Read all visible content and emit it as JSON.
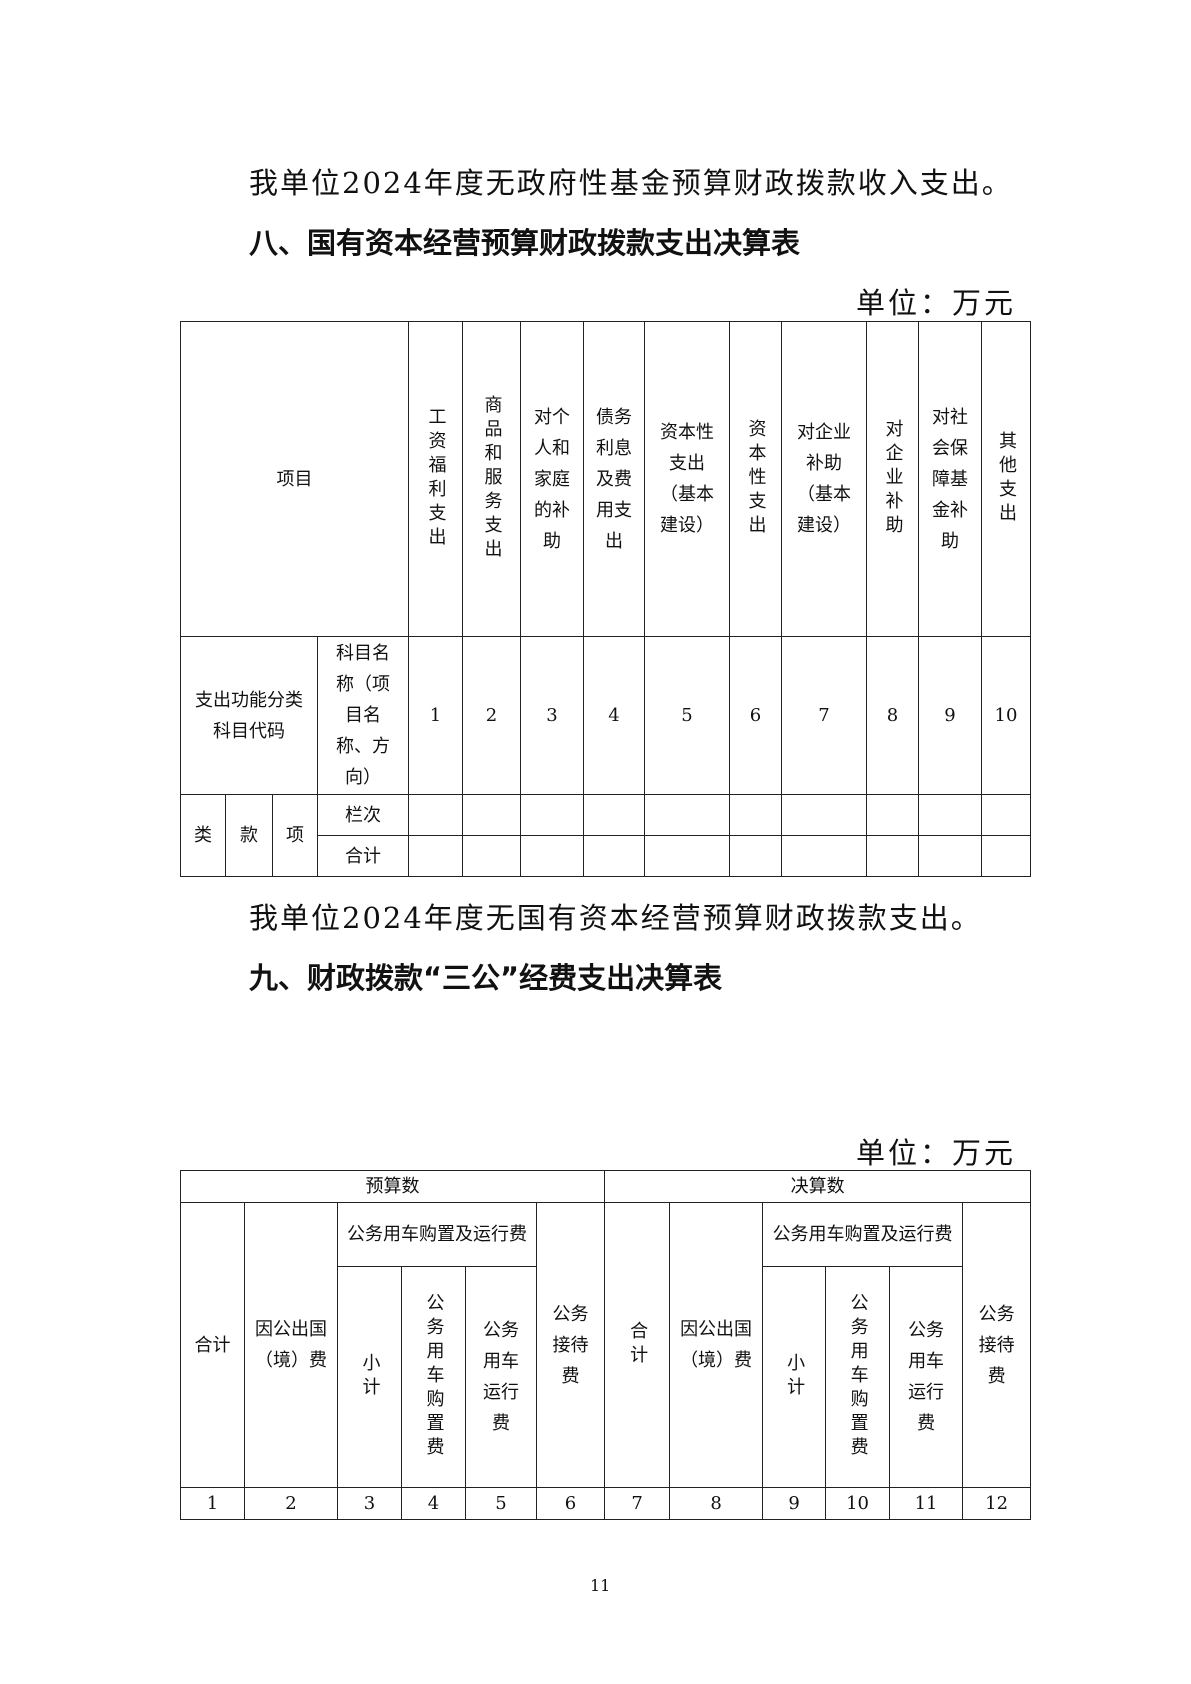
{
  "para1": "我单位2024年度无政府性基金预算财政拨款收入支出。",
  "heading8": "八、国有资本经营预算财政拨款支出决算表",
  "unit": "单位：万元",
  "table8": {
    "project": "项目",
    "columns": [
      "工资福利支出",
      "商品和服务支出",
      "对个人和家庭的补助",
      "债务利息及费用支出",
      "资本性支出（基本建设）",
      "资本性支出",
      "对企业补助（基本建设）",
      "对企业补助",
      "对社会保障基金补助",
      "其他支出"
    ],
    "func_code": "支出功能分类科目代码",
    "subject_name": "科目名称（项目名称、方向）",
    "col_numbers": [
      "1",
      "2",
      "3",
      "4",
      "5",
      "6",
      "7",
      "8",
      "9",
      "10"
    ],
    "lei": "类",
    "kuan": "款",
    "xiang": "项",
    "lanci": "栏次",
    "total": "合计"
  },
  "para2": "我单位2024年度无国有资本经营预算财政拨款支出。",
  "heading9": "九、财政拨款“三公”经费支出决算表",
  "table9": {
    "budget": "预算数",
    "final": "决算数",
    "total": "合计",
    "total_v": "合计",
    "abroad": "因公出国（境）费",
    "car_group": "公务用车购置及运行费",
    "subtotal": "小计",
    "car_purchase": "公务用车购置费",
    "car_run": "公务用车运行费",
    "reception": "公务接待费",
    "col_numbers": [
      "1",
      "2",
      "3",
      "4",
      "5",
      "6",
      "7",
      "8",
      "9",
      "10",
      "11",
      "12"
    ]
  },
  "page_number": "11"
}
